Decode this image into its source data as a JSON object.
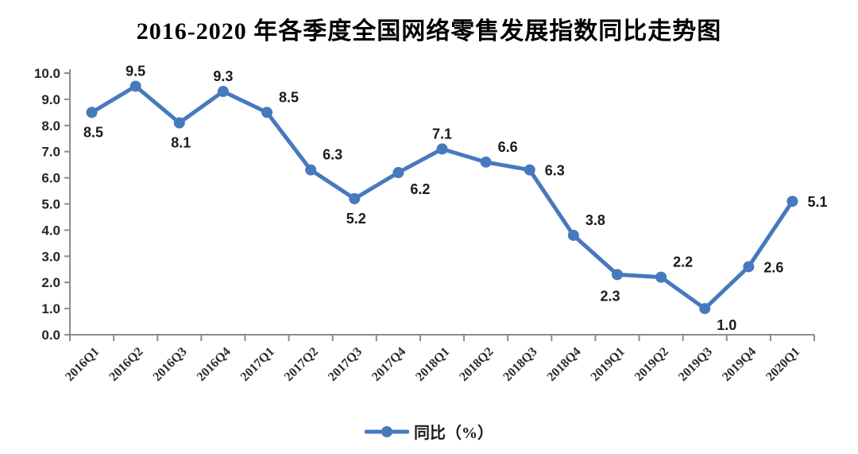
{
  "title": "2016-2020 年各季度全国网络零售发展指数同比走势图",
  "legend": {
    "label": "同比（%）"
  },
  "chart_data": {
    "type": "line",
    "title": "2016-2020 年各季度全国网络零售发展指数同比走势图",
    "categories": [
      "2016Q1",
      "2016Q2",
      "2016Q3",
      "2016Q4",
      "2017Q1",
      "2017Q2",
      "2017Q3",
      "2017Q4",
      "2018Q1",
      "2018Q2",
      "2018Q3",
      "2018Q4",
      "2019Q1",
      "2019Q2",
      "2019Q3",
      "2019Q4",
      "2020Q1"
    ],
    "series": [
      {
        "name": "同比（%）",
        "values": [
          8.5,
          9.5,
          8.1,
          9.3,
          8.5,
          6.3,
          5.2,
          6.2,
          7.1,
          6.6,
          6.3,
          3.8,
          2.3,
          2.2,
          1.0,
          2.6,
          5.1
        ]
      }
    ],
    "xlabel": "",
    "ylabel": "",
    "ylim": [
      0,
      10
    ],
    "ytick_step": 1.0,
    "ytick_decimals": 1,
    "grid": "off",
    "legend_position": "bottom",
    "x_tick_label_rotation": -45,
    "label_positions": [
      "below",
      "above",
      "below",
      "above",
      "above-right",
      "above-right",
      "below",
      "below-right",
      "above",
      "above-right",
      "right",
      "above-right",
      "below-left",
      "above-right",
      "below-right",
      "right",
      "right"
    ],
    "colors": {
      "line": "#4679bd",
      "marker": "#4679bd",
      "axis": "#8c8c8c",
      "tick_label": "#262626",
      "data_label": "#1a1a1a"
    }
  }
}
